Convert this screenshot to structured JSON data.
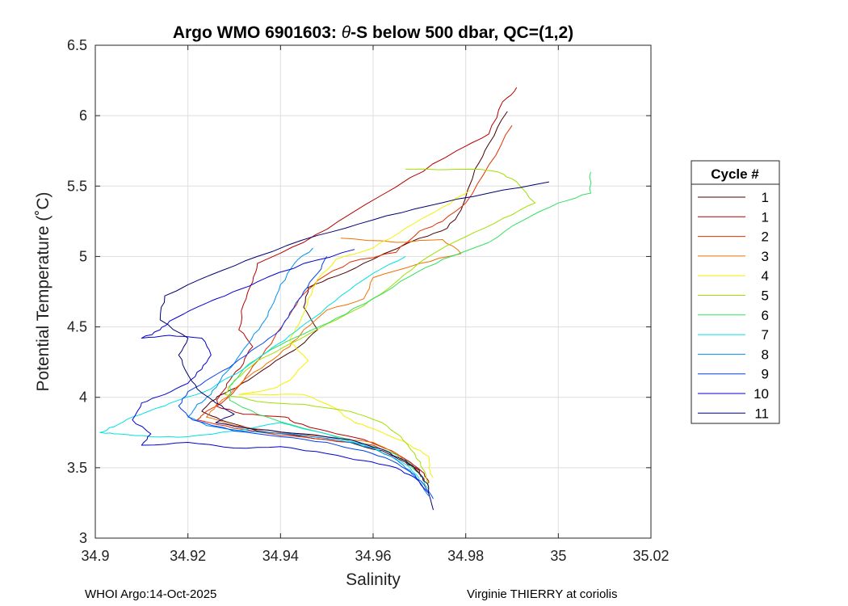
{
  "header": {
    "title_prefix": "Argo WMO 6901603: ",
    "title_theta": "θ",
    "title_suffix": "-S below 500 dbar,  QC=(1,2)"
  },
  "footer": {
    "left": "WHOI Argo:14-Oct-2025",
    "right": "Virginie THIERRY at coriolis"
  },
  "chart_data": {
    "type": "line",
    "title": "Argo WMO 6901603: θ-S below 500 dbar,  QC=(1,2)",
    "xlabel": "Salinity",
    "ylabel": "Potential Temperature (˚C)",
    "xlim": [
      34.9,
      35.02
    ],
    "ylim": [
      3,
      6.5
    ],
    "xticks": [
      34.9,
      34.92,
      34.94,
      34.96,
      34.98,
      35,
      35.02
    ],
    "xtick_labels": [
      "34.9",
      "34.92",
      "34.94",
      "34.96",
      "34.98",
      "35",
      "35.02"
    ],
    "yticks": [
      3,
      3.5,
      4,
      4.5,
      5,
      5.5,
      6,
      6.5
    ],
    "ytick_labels": [
      "3",
      "3.5",
      "4",
      "4.5",
      "5",
      "5.5",
      "6",
      "6.5"
    ],
    "grid": true,
    "legend_title": "Cycle #",
    "legend_position": "right",
    "series": [
      {
        "name": "1",
        "color": "#4a0000",
        "points": [
          [
            34.989,
            6.03
          ],
          [
            34.985,
            5.8
          ],
          [
            34.982,
            5.62
          ],
          [
            34.979,
            5.33
          ],
          [
            34.976,
            5.2
          ],
          [
            34.97,
            5.13
          ],
          [
            34.96,
            4.98
          ],
          [
            34.952,
            4.86
          ],
          [
            34.946,
            4.78
          ],
          [
            34.945,
            4.64
          ],
          [
            34.948,
            4.48
          ],
          [
            34.944,
            4.36
          ],
          [
            34.939,
            4.26
          ],
          [
            34.933,
            4.12
          ],
          [
            34.928,
            4.03
          ],
          [
            34.925,
            3.97
          ],
          [
            34.923,
            3.9
          ],
          [
            34.927,
            3.84
          ],
          [
            34.935,
            3.76
          ],
          [
            34.945,
            3.72
          ],
          [
            34.955,
            3.68
          ],
          [
            34.962,
            3.62
          ],
          [
            34.967,
            3.54
          ],
          [
            34.97,
            3.48
          ],
          [
            34.971,
            3.4
          ]
        ]
      },
      {
        "name": "1",
        "color": "#b50000",
        "points": [
          [
            34.991,
            6.2
          ],
          [
            34.988,
            6.1
          ],
          [
            34.985,
            5.87
          ],
          [
            34.978,
            5.75
          ],
          [
            34.968,
            5.56
          ],
          [
            34.955,
            5.3
          ],
          [
            34.945,
            5.1
          ],
          [
            34.935,
            4.95
          ],
          [
            34.934,
            4.82
          ],
          [
            34.932,
            4.66
          ],
          [
            34.931,
            4.48
          ],
          [
            34.934,
            4.36
          ],
          [
            34.932,
            4.24
          ],
          [
            34.929,
            4.12
          ],
          [
            34.927,
            4.02
          ],
          [
            34.926,
            3.94
          ],
          [
            34.932,
            3.88
          ],
          [
            34.941,
            3.86
          ],
          [
            34.943,
            3.82
          ],
          [
            34.95,
            3.76
          ],
          [
            34.958,
            3.7
          ],
          [
            34.964,
            3.62
          ],
          [
            34.968,
            3.54
          ],
          [
            34.971,
            3.46
          ],
          [
            34.972,
            3.39
          ]
        ]
      },
      {
        "name": "2",
        "color": "#e03000",
        "points": [
          [
            34.99,
            5.93
          ],
          [
            34.985,
            5.65
          ],
          [
            34.98,
            5.38
          ],
          [
            34.975,
            5.25
          ],
          [
            34.97,
            5.18
          ],
          [
            34.965,
            5.03
          ],
          [
            34.955,
            4.96
          ],
          [
            34.948,
            4.83
          ],
          [
            34.944,
            4.7
          ],
          [
            34.941,
            4.54
          ],
          [
            34.938,
            4.38
          ],
          [
            34.934,
            4.22
          ],
          [
            34.931,
            4.08
          ],
          [
            34.928,
            3.98
          ],
          [
            34.924,
            3.9
          ],
          [
            34.922,
            3.84
          ],
          [
            34.93,
            3.78
          ],
          [
            34.94,
            3.73
          ],
          [
            34.95,
            3.7
          ],
          [
            34.96,
            3.66
          ],
          [
            34.966,
            3.58
          ],
          [
            34.969,
            3.5
          ],
          [
            34.971,
            3.42
          ]
        ]
      },
      {
        "name": "3",
        "color": "#f07000",
        "points": [
          [
            34.953,
            5.13
          ],
          [
            34.965,
            5.1
          ],
          [
            34.975,
            5.12
          ],
          [
            34.979,
            5.02
          ],
          [
            34.97,
            4.95
          ],
          [
            34.96,
            4.85
          ],
          [
            34.958,
            4.7
          ],
          [
            34.95,
            4.62
          ],
          [
            34.945,
            4.48
          ],
          [
            34.942,
            4.36
          ],
          [
            34.937,
            4.24
          ],
          [
            34.932,
            4.12
          ],
          [
            34.929,
            4.02
          ],
          [
            34.926,
            3.94
          ],
          [
            34.924,
            3.86
          ],
          [
            34.93,
            3.8
          ],
          [
            34.94,
            3.75
          ],
          [
            34.95,
            3.72
          ],
          [
            34.96,
            3.68
          ],
          [
            34.965,
            3.6
          ],
          [
            34.968,
            3.52
          ],
          [
            34.97,
            3.45
          ]
        ]
      },
      {
        "name": "4",
        "color": "#f5f000",
        "points": [
          [
            34.981,
            5.47
          ],
          [
            34.975,
            5.35
          ],
          [
            34.967,
            5.2
          ],
          [
            34.96,
            5.06
          ],
          [
            34.952,
            4.98
          ],
          [
            34.948,
            4.84
          ],
          [
            34.946,
            4.7
          ],
          [
            34.944,
            4.52
          ],
          [
            34.942,
            4.4
          ],
          [
            34.946,
            4.26
          ],
          [
            34.942,
            4.12
          ],
          [
            34.938,
            4.06
          ],
          [
            34.931,
            4.02
          ],
          [
            34.945,
            4.02
          ],
          [
            34.952,
            3.92
          ],
          [
            34.956,
            3.82
          ],
          [
            34.962,
            3.75
          ],
          [
            34.968,
            3.66
          ],
          [
            34.972,
            3.58
          ],
          [
            34.972,
            3.5
          ],
          [
            34.973,
            3.43
          ]
        ]
      },
      {
        "name": "5",
        "color": "#a0e000",
        "points": [
          [
            34.967,
            5.62
          ],
          [
            34.982,
            5.62
          ],
          [
            34.987,
            5.6
          ],
          [
            34.991,
            5.53
          ],
          [
            34.995,
            5.38
          ],
          [
            34.988,
            5.27
          ],
          [
            34.98,
            5.14
          ],
          [
            34.972,
            5.0
          ],
          [
            34.965,
            4.82
          ],
          [
            34.958,
            4.65
          ],
          [
            34.95,
            4.52
          ],
          [
            34.942,
            4.38
          ],
          [
            34.935,
            4.26
          ],
          [
            34.93,
            4.12
          ],
          [
            34.928,
            4.02
          ],
          [
            34.935,
            3.97
          ],
          [
            34.945,
            3.95
          ],
          [
            34.955,
            3.9
          ],
          [
            34.962,
            3.82
          ],
          [
            34.966,
            3.72
          ],
          [
            34.969,
            3.6
          ],
          [
            34.971,
            3.48
          ],
          [
            34.972,
            3.37
          ]
        ]
      },
      {
        "name": "6",
        "color": "#30e060",
        "points": [
          [
            35.007,
            5.6
          ],
          [
            35.007,
            5.45
          ],
          [
            35.0,
            5.38
          ],
          [
            34.992,
            5.25
          ],
          [
            34.985,
            5.1
          ],
          [
            34.975,
            4.98
          ],
          [
            34.968,
            4.86
          ],
          [
            34.96,
            4.7
          ],
          [
            34.952,
            4.56
          ],
          [
            34.945,
            4.45
          ],
          [
            34.938,
            4.34
          ],
          [
            34.932,
            4.2
          ],
          [
            34.929,
            4.08
          ],
          [
            34.929,
            3.98
          ],
          [
            34.935,
            3.88
          ],
          [
            34.945,
            3.78
          ],
          [
            34.955,
            3.7
          ],
          [
            34.963,
            3.62
          ],
          [
            34.967,
            3.55
          ],
          [
            34.97,
            3.46
          ],
          [
            34.972,
            3.35
          ]
        ]
      },
      {
        "name": "7",
        "color": "#00e0e0",
        "points": [
          [
            34.967,
            5.0
          ],
          [
            34.96,
            4.88
          ],
          [
            34.953,
            4.72
          ],
          [
            34.947,
            4.56
          ],
          [
            34.942,
            4.44
          ],
          [
            34.937,
            4.32
          ],
          [
            34.932,
            4.2
          ],
          [
            34.925,
            4.06
          ],
          [
            34.918,
            3.98
          ],
          [
            34.914,
            3.93
          ],
          [
            34.908,
            3.86
          ],
          [
            34.904,
            3.79
          ],
          [
            34.901,
            3.75
          ],
          [
            34.905,
            3.74
          ],
          [
            34.912,
            3.72
          ],
          [
            34.92,
            3.72
          ],
          [
            34.93,
            3.76
          ],
          [
            34.94,
            3.82
          ],
          [
            34.95,
            3.74
          ],
          [
            34.958,
            3.66
          ],
          [
            34.964,
            3.58
          ],
          [
            34.968,
            3.5
          ],
          [
            34.97,
            3.42
          ]
        ]
      },
      {
        "name": "8",
        "color": "#0090f0",
        "points": [
          [
            34.947,
            5.06
          ],
          [
            34.943,
            4.95
          ],
          [
            34.94,
            4.8
          ],
          [
            34.938,
            4.64
          ],
          [
            34.936,
            4.52
          ],
          [
            34.933,
            4.38
          ],
          [
            34.93,
            4.24
          ],
          [
            34.927,
            4.12
          ],
          [
            34.925,
            4.02
          ],
          [
            34.922,
            3.95
          ],
          [
            34.92,
            3.86
          ],
          [
            34.924,
            3.8
          ],
          [
            34.932,
            3.76
          ],
          [
            34.942,
            3.74
          ],
          [
            34.952,
            3.7
          ],
          [
            34.96,
            3.64
          ],
          [
            34.965,
            3.56
          ],
          [
            34.968,
            3.48
          ],
          [
            34.97,
            3.4
          ],
          [
            34.972,
            3.3
          ]
        ]
      },
      {
        "name": "9",
        "color": "#0040f0",
        "points": [
          [
            34.95,
            5.0
          ],
          [
            34.948,
            4.88
          ],
          [
            34.945,
            4.75
          ],
          [
            34.942,
            4.6
          ],
          [
            34.94,
            4.48
          ],
          [
            34.935,
            4.36
          ],
          [
            34.93,
            4.24
          ],
          [
            34.925,
            4.14
          ],
          [
            34.92,
            4.04
          ],
          [
            34.918,
            3.94
          ],
          [
            34.921,
            3.84
          ],
          [
            34.93,
            3.76
          ],
          [
            34.94,
            3.72
          ],
          [
            34.95,
            3.68
          ],
          [
            34.958,
            3.62
          ],
          [
            34.964,
            3.55
          ],
          [
            34.968,
            3.47
          ],
          [
            34.971,
            3.38
          ],
          [
            34.973,
            3.28
          ]
        ]
      },
      {
        "name": "10",
        "color": "#0000d0",
        "points": [
          [
            34.956,
            5.05
          ],
          [
            34.945,
            4.95
          ],
          [
            34.935,
            4.82
          ],
          [
            34.928,
            4.72
          ],
          [
            34.922,
            4.64
          ],
          [
            34.916,
            4.54
          ],
          [
            34.914,
            4.48
          ],
          [
            34.91,
            4.42
          ],
          [
            34.916,
            4.44
          ],
          [
            34.923,
            4.42
          ],
          [
            34.925,
            4.3
          ],
          [
            34.923,
            4.2
          ],
          [
            34.92,
            4.1
          ],
          [
            34.915,
            4.02
          ],
          [
            34.91,
            3.96
          ],
          [
            34.908,
            3.84
          ],
          [
            34.912,
            3.74
          ],
          [
            34.91,
            3.66
          ],
          [
            34.92,
            3.68
          ],
          [
            34.93,
            3.64
          ],
          [
            34.94,
            3.65
          ],
          [
            34.95,
            3.6
          ],
          [
            34.958,
            3.55
          ],
          [
            34.965,
            3.5
          ],
          [
            34.969,
            3.43
          ],
          [
            34.972,
            3.32
          ]
        ]
      },
      {
        "name": "11",
        "color": "#000070",
        "points": [
          [
            34.998,
            5.53
          ],
          [
            34.985,
            5.45
          ],
          [
            34.972,
            5.36
          ],
          [
            34.96,
            5.26
          ],
          [
            34.948,
            5.15
          ],
          [
            34.935,
            5.0
          ],
          [
            34.925,
            4.87
          ],
          [
            34.915,
            4.72
          ],
          [
            34.914,
            4.55
          ],
          [
            34.92,
            4.42
          ],
          [
            34.918,
            4.3
          ],
          [
            34.92,
            4.16
          ],
          [
            34.922,
            4.06
          ],
          [
            34.926,
            3.96
          ],
          [
            34.93,
            3.88
          ],
          [
            34.926,
            3.82
          ],
          [
            34.935,
            3.77
          ],
          [
            34.945,
            3.74
          ],
          [
            34.955,
            3.7
          ],
          [
            34.962,
            3.63
          ],
          [
            34.967,
            3.55
          ],
          [
            34.97,
            3.46
          ],
          [
            34.972,
            3.36
          ],
          [
            34.973,
            3.2
          ]
        ]
      }
    ]
  }
}
